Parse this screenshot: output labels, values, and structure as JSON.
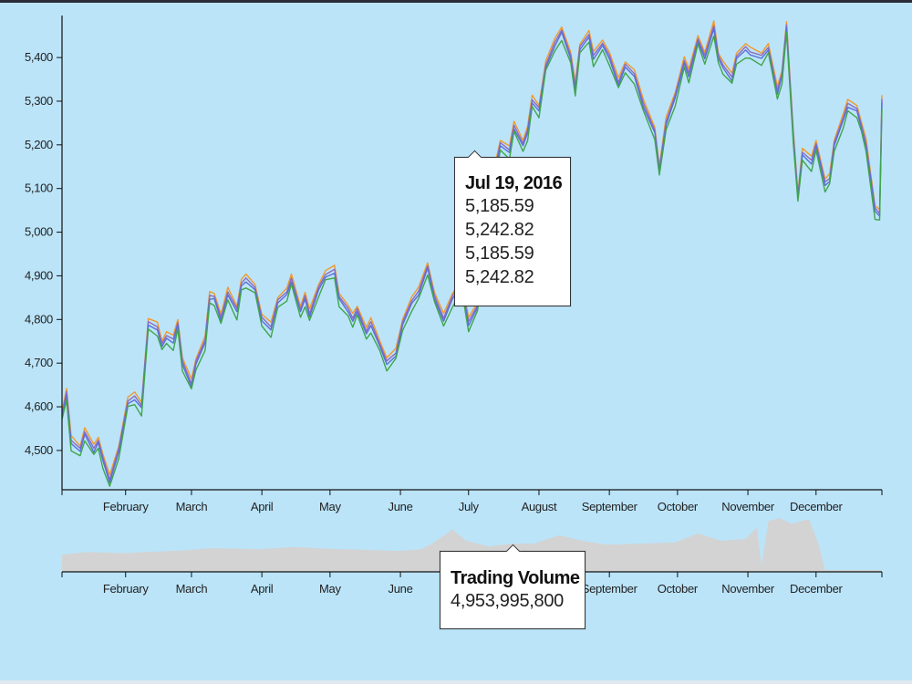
{
  "chart_data": {
    "type": "line",
    "x_domain": [
      "2016-01-04",
      "2016-12-30"
    ],
    "ylim": [
      4410,
      5490
    ],
    "yticks": [
      "4,500",
      "4,600",
      "4,700",
      "4,800",
      "4,900",
      "5,000",
      "5,100",
      "5,200",
      "5,300",
      "5,400"
    ],
    "ytick_values": [
      4500,
      4600,
      4700,
      4800,
      4900,
      5000,
      5100,
      5200,
      5300,
      5400
    ],
    "month_labels": [
      "February",
      "March",
      "April",
      "May",
      "June",
      "July",
      "August",
      "September",
      "October",
      "November",
      "December"
    ],
    "month_dates": [
      "2016-02-01",
      "2016-03-01",
      "2016-04-01",
      "2016-05-01",
      "2016-06-01",
      "2016-07-01",
      "2016-08-01",
      "2016-09-01",
      "2016-10-01",
      "2016-11-01",
      "2016-12-01"
    ],
    "series_colors": [
      "#ef9b2c",
      "#8e6bbf",
      "#5b6fd8",
      "#3fa64a"
    ],
    "close_series": [
      [
        "2016-01-04",
        4580
      ],
      [
        "2016-01-06",
        4630
      ],
      [
        "2016-01-08",
        4520
      ],
      [
        "2016-01-12",
        4500
      ],
      [
        "2016-01-14",
        4540
      ],
      [
        "2016-01-18",
        4500
      ],
      [
        "2016-01-20",
        4520
      ],
      [
        "2016-01-22",
        4480
      ],
      [
        "2016-01-25",
        4430
      ],
      [
        "2016-01-29",
        4500
      ],
      [
        "2016-02-02",
        4610
      ],
      [
        "2016-02-05",
        4620
      ],
      [
        "2016-02-08",
        4600
      ],
      [
        "2016-02-11",
        4790
      ],
      [
        "2016-02-15",
        4780
      ],
      [
        "2016-02-17",
        4740
      ],
      [
        "2016-02-19",
        4760
      ],
      [
        "2016-02-22",
        4750
      ],
      [
        "2016-02-24",
        4790
      ],
      [
        "2016-02-26",
        4700
      ],
      [
        "2016-03-01",
        4650
      ],
      [
        "2016-03-03",
        4700
      ],
      [
        "2016-03-07",
        4750
      ],
      [
        "2016-03-09",
        4850
      ],
      [
        "2016-03-11",
        4850
      ],
      [
        "2016-03-14",
        4800
      ],
      [
        "2016-03-17",
        4860
      ],
      [
        "2016-03-21",
        4820
      ],
      [
        "2016-03-23",
        4880
      ],
      [
        "2016-03-25",
        4890
      ],
      [
        "2016-03-29",
        4870
      ],
      [
        "2016-04-01",
        4800
      ],
      [
        "2016-04-05",
        4780
      ],
      [
        "2016-04-08",
        4840
      ],
      [
        "2016-04-12",
        4860
      ],
      [
        "2016-04-14",
        4890
      ],
      [
        "2016-04-18",
        4820
      ],
      [
        "2016-04-20",
        4850
      ],
      [
        "2016-04-22",
        4810
      ],
      [
        "2016-04-26",
        4870
      ],
      [
        "2016-04-29",
        4900
      ],
      [
        "2016-05-03",
        4910
      ],
      [
        "2016-05-05",
        4850
      ],
      [
        "2016-05-09",
        4820
      ],
      [
        "2016-05-11",
        4800
      ],
      [
        "2016-05-13",
        4820
      ],
      [
        "2016-05-17",
        4770
      ],
      [
        "2016-05-19",
        4790
      ],
      [
        "2016-05-23",
        4740
      ],
      [
        "2016-05-26",
        4700
      ],
      [
        "2016-05-30",
        4720
      ],
      [
        "2016-06-02",
        4790
      ],
      [
        "2016-06-06",
        4840
      ],
      [
        "2016-06-09",
        4860
      ],
      [
        "2016-06-13",
        4920
      ],
      [
        "2016-06-16",
        4850
      ],
      [
        "2016-06-20",
        4800
      ],
      [
        "2016-06-24",
        4850
      ],
      [
        "2016-06-28",
        4880
      ],
      [
        "2016-07-01",
        4790
      ],
      [
        "2016-07-05",
        4830
      ],
      [
        "2016-07-11",
        5100
      ],
      [
        "2016-07-13",
        5150
      ],
      [
        "2016-07-15",
        5200
      ],
      [
        "2016-07-19",
        5185.59
      ],
      [
        "2016-07-21",
        5240
      ],
      [
        "2016-07-25",
        5200
      ],
      [
        "2016-07-27",
        5230
      ],
      [
        "2016-07-29",
        5300
      ],
      [
        "2016-08-01",
        5280
      ],
      [
        "2016-08-04",
        5380
      ],
      [
        "2016-08-08",
        5430
      ],
      [
        "2016-08-11",
        5460
      ],
      [
        "2016-08-15",
        5400
      ],
      [
        "2016-08-17",
        5330
      ],
      [
        "2016-08-19",
        5420
      ],
      [
        "2016-08-23",
        5450
      ],
      [
        "2016-08-25",
        5400
      ],
      [
        "2016-08-29",
        5430
      ],
      [
        "2016-09-01",
        5400
      ],
      [
        "2016-09-05",
        5340
      ],
      [
        "2016-09-08",
        5380
      ],
      [
        "2016-09-12",
        5360
      ],
      [
        "2016-09-16",
        5290
      ],
      [
        "2016-09-21",
        5230
      ],
      [
        "2016-09-23",
        5140
      ],
      [
        "2016-09-26",
        5250
      ],
      [
        "2016-09-30",
        5310
      ],
      [
        "2016-10-04",
        5390
      ],
      [
        "2016-10-06",
        5360
      ],
      [
        "2016-10-10",
        5440
      ],
      [
        "2016-10-13",
        5400
      ],
      [
        "2016-10-17",
        5470
      ],
      [
        "2016-10-19",
        5400
      ],
      [
        "2016-10-21",
        5380
      ],
      [
        "2016-10-25",
        5350
      ],
      [
        "2016-10-27",
        5400
      ],
      [
        "2016-10-31",
        5420
      ],
      [
        "2016-11-02",
        5410
      ],
      [
        "2016-11-07",
        5400
      ],
      [
        "2016-11-10",
        5420
      ],
      [
        "2016-11-14",
        5320
      ],
      [
        "2016-11-16",
        5360
      ],
      [
        "2016-11-18",
        5470
      ],
      [
        "2016-11-21",
        5220
      ],
      [
        "2016-11-23",
        5080
      ],
      [
        "2016-11-25",
        5180
      ],
      [
        "2016-11-29",
        5160
      ],
      [
        "2016-12-01",
        5200
      ],
      [
        "2016-12-05",
        5110
      ],
      [
        "2016-12-07",
        5120
      ],
      [
        "2016-12-09",
        5200
      ],
      [
        "2016-12-13",
        5260
      ],
      [
        "2016-12-15",
        5290
      ],
      [
        "2016-12-19",
        5280
      ],
      [
        "2016-12-21",
        5240
      ],
      [
        "2016-12-23",
        5200
      ],
      [
        "2016-12-27",
        5050
      ],
      [
        "2016-12-29",
        5040
      ],
      [
        "2016-12-30",
        5300
      ]
    ],
    "volume_series": [
      [
        "2016-01-04",
        3
      ],
      [
        "2016-01-15",
        3.5
      ],
      [
        "2016-01-31",
        3.3
      ],
      [
        "2016-02-15",
        3.6
      ],
      [
        "2016-02-28",
        3.8
      ],
      [
        "2016-03-10",
        4.2
      ],
      [
        "2016-03-31",
        4.0
      ],
      [
        "2016-04-15",
        4.4
      ],
      [
        "2016-04-30",
        4.1
      ],
      [
        "2016-05-15",
        3.9
      ],
      [
        "2016-05-31",
        3.7
      ],
      [
        "2016-06-10",
        4.0
      ],
      [
        "2016-06-15",
        5.0
      ],
      [
        "2016-06-24",
        7.5
      ],
      [
        "2016-06-30",
        5.5
      ],
      [
        "2016-07-10",
        4.5
      ],
      [
        "2016-07-19",
        4.95
      ],
      [
        "2016-07-30",
        5.0
      ],
      [
        "2016-08-10",
        6.5
      ],
      [
        "2016-08-20",
        5.5
      ],
      [
        "2016-08-31",
        4.8
      ],
      [
        "2016-09-15",
        5.0
      ],
      [
        "2016-09-30",
        5.2
      ],
      [
        "2016-10-10",
        6.8
      ],
      [
        "2016-10-20",
        5.5
      ],
      [
        "2016-10-31",
        5.8
      ],
      [
        "2016-11-05",
        7.8
      ],
      [
        "2016-11-07",
        1.0
      ],
      [
        "2016-11-10",
        9.0
      ],
      [
        "2016-11-15",
        9.5
      ],
      [
        "2016-11-20",
        8.5
      ],
      [
        "2016-11-28",
        9.3
      ],
      [
        "2016-12-02",
        5.0
      ],
      [
        "2016-12-05",
        0.3
      ],
      [
        "2016-12-30",
        0.3
      ]
    ],
    "tooltip_date": "2016-07-19"
  },
  "price_tooltip": {
    "title": "Jul 19, 2016",
    "values": [
      "5,185.59",
      "5,242.82",
      "5,185.59",
      "5,242.82"
    ]
  },
  "volume_tooltip": {
    "title": "Trading Volume",
    "value": "4,953,995,800"
  }
}
